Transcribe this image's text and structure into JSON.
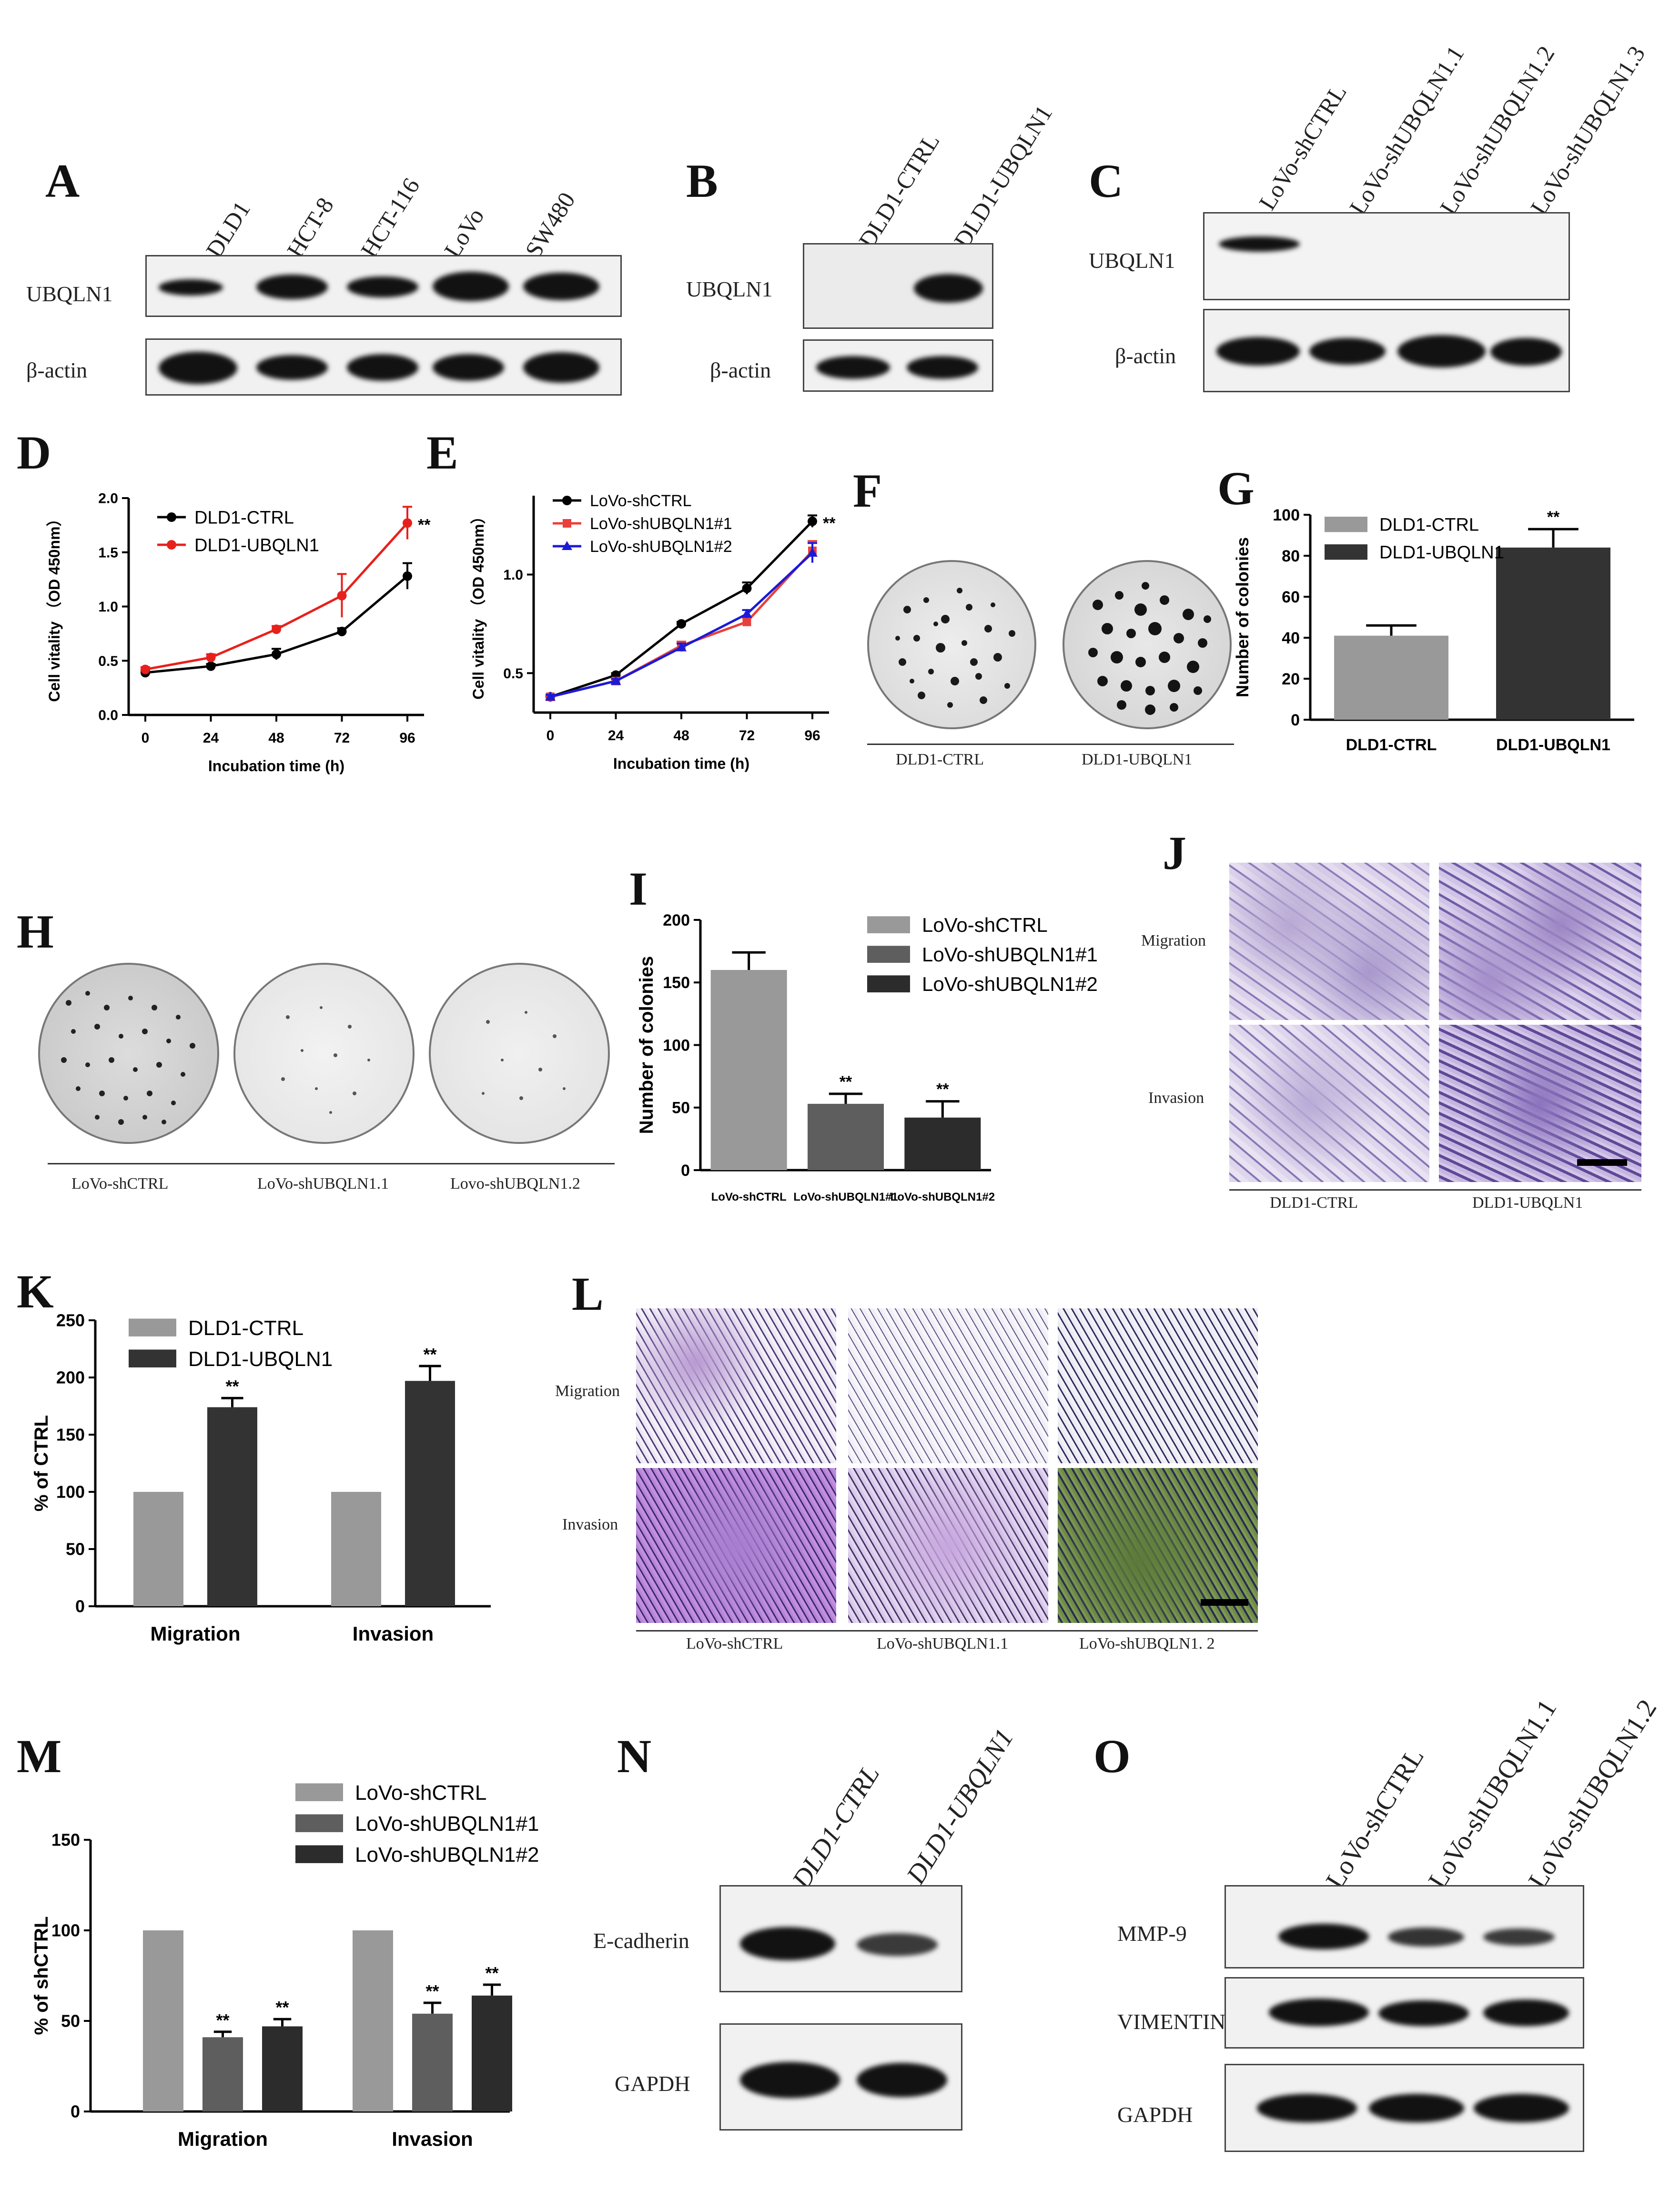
{
  "panels": {
    "A": {
      "label": "A",
      "lanes": [
        "DLD1",
        "HCT-8",
        "HCT-116",
        "LoVo",
        "SW480"
      ],
      "rows": [
        "UBQLN1",
        "β-actin"
      ]
    },
    "B": {
      "label": "B",
      "lanes": [
        "DLD1-CTRL",
        "DLD1-UBQLN1"
      ],
      "rows": [
        "UBQLN1",
        "β-actin"
      ]
    },
    "C": {
      "label": "C",
      "lanes": [
        "LoVo-shCTRL",
        "LoVo-shUBQLN1.1",
        "LoVo-shUBQLN1.2",
        "LoVo-shUBQLN1.3"
      ],
      "rows": [
        "UBQLN1",
        "β-actin"
      ]
    },
    "F": {
      "label": "F",
      "captions": [
        "DLD1-CTRL",
        "DLD1-UBQLN1"
      ]
    },
    "H": {
      "label": "H",
      "captions": [
        "LoVo-shCTRL",
        "LoVo-shUBQLN1.1",
        "Lovo-shUBQLN1.2"
      ]
    },
    "J": {
      "label": "J",
      "rows": [
        "Migration",
        "Invasion"
      ],
      "captions": [
        "DLD1-CTRL",
        "DLD1-UBQLN1"
      ]
    },
    "L": {
      "label": "L",
      "rows": [
        "Migration",
        "Invasion"
      ],
      "captions": [
        "LoVo-shCTRL",
        "LoVo-shUBQLN1.1",
        "LoVo-shUBQLN1. 2"
      ]
    },
    "N": {
      "label": "N",
      "lanes": [
        "DLD1-CTRL",
        "DLD1-UBQLN1"
      ],
      "rows": [
        "E-cadherin",
        "GAPDH"
      ]
    },
    "O": {
      "label": "O",
      "lanes": [
        "LoVo-shCTRL",
        "LoVo-shUBQLN1.1",
        "LoVo-shUBQLN1.2"
      ],
      "rows": [
        "MMP-9",
        "VIMENTIN",
        "GAPDH"
      ]
    }
  },
  "chart_data": [
    {
      "id": "D",
      "type": "line",
      "xlabel": "Incubation time (h)",
      "ylabel": "Cell vitality （OD 450nm）",
      "x": [
        0,
        24,
        48,
        72,
        96
      ],
      "ylim": [
        0,
        2.0
      ],
      "yticks": [
        "0.0",
        "0.5",
        "1.0",
        "1.5",
        "2.0"
      ],
      "series": [
        {
          "name": "DLD1-CTRL",
          "color": "#000000",
          "values": [
            0.39,
            0.45,
            0.56,
            0.77,
            1.28
          ],
          "err": [
            0.02,
            0.02,
            0.05,
            0.03,
            0.12
          ]
        },
        {
          "name": "DLD1-UBQLN1",
          "color": "#e8201c",
          "values": [
            0.42,
            0.53,
            0.79,
            1.1,
            1.77
          ],
          "err": [
            0.02,
            0.03,
            0.03,
            0.2,
            0.15
          ]
        }
      ],
      "annotations": [
        "**"
      ]
    },
    {
      "id": "E",
      "type": "line",
      "xlabel": "Incubation time (h)",
      "ylabel": "Cell vitality （OD 450nm）",
      "x": [
        0,
        24,
        48,
        72,
        96
      ],
      "ylim": [
        0.3,
        1.4
      ],
      "yticks": [
        "0.5",
        "1.0"
      ],
      "series": [
        {
          "name": "LoVo-shCTRL",
          "color": "#000000",
          "values": [
            0.38,
            0.49,
            0.75,
            0.93,
            1.27
          ],
          "err": [
            0.01,
            0.01,
            0.01,
            0.03,
            0.03
          ]
        },
        {
          "name": "LoVo-shUBQLN1#1",
          "color": "#e8403c",
          "values": [
            0.38,
            0.46,
            0.64,
            0.76,
            1.12
          ],
          "err": [
            0.01,
            0.01,
            0.02,
            0.02,
            0.05
          ]
        },
        {
          "name": "LoVo-shUBQLN1#2",
          "color": "#1a1ad8",
          "values": [
            0.38,
            0.46,
            0.63,
            0.8,
            1.11
          ],
          "err": [
            0.01,
            0.01,
            0.02,
            0.02,
            0.05
          ]
        }
      ],
      "annotations": [
        "**"
      ]
    },
    {
      "id": "G",
      "type": "bar",
      "ylabel": "Number of colonies",
      "categories": [
        "DLD1-CTRL",
        "DLD1-UBQLN1"
      ],
      "ylim": [
        0,
        100
      ],
      "yticks": [
        "0",
        "20",
        "40",
        "60",
        "80",
        "100"
      ],
      "series": [
        {
          "name": "",
          "values": [
            41,
            84
          ],
          "err": [
            5,
            9
          ]
        }
      ],
      "colors": [
        "#999999",
        "#333333"
      ],
      "legend": [
        "DLD1-CTRL",
        "DLD1-UBQLN1"
      ],
      "annotations": [
        "**"
      ]
    },
    {
      "id": "I",
      "type": "bar",
      "ylabel": "Number of colonies",
      "categories": [
        "LoVo-shCTRL",
        "LoVo-shUBQLN1#1",
        "LoVo-shUBQLN1#2"
      ],
      "ylim": [
        0,
        200
      ],
      "yticks": [
        "0",
        "50",
        "100",
        "150",
        "200"
      ],
      "series": [
        {
          "name": "",
          "values": [
            160,
            53,
            42
          ],
          "err": [
            14,
            8,
            13
          ]
        }
      ],
      "colors": [
        "#999999",
        "#5e5e5e",
        "#2c2c2c"
      ],
      "legend": [
        "LoVo-shCTRL",
        "LoVo-shUBQLN1#1",
        "LoVo-shUBQLN1#2"
      ],
      "annotations": [
        "**",
        "**"
      ]
    },
    {
      "id": "K",
      "type": "bar",
      "ylabel": "% of CTRL",
      "categories": [
        "Migration",
        "Invasion"
      ],
      "ylim": [
        0,
        250
      ],
      "yticks": [
        "0",
        "50",
        "100",
        "150",
        "200",
        "250"
      ],
      "series": [
        {
          "name": "DLD1-CTRL",
          "color": "#999999",
          "values": [
            100,
            100
          ],
          "err": [
            0,
            0
          ]
        },
        {
          "name": "DLD1-UBQLN1",
          "color": "#333333",
          "values": [
            174,
            197
          ],
          "err": [
            8,
            13
          ]
        }
      ],
      "annotations": [
        "**",
        "**"
      ]
    },
    {
      "id": "M",
      "type": "bar",
      "ylabel": "% of shCTRL",
      "categories": [
        "Migration",
        "Invasion"
      ],
      "ylim": [
        0,
        150
      ],
      "yticks": [
        "0",
        "50",
        "100",
        "150"
      ],
      "series": [
        {
          "name": "LoVo-shCTRL",
          "color": "#999999",
          "values": [
            100,
            100
          ],
          "err": [
            0,
            0
          ]
        },
        {
          "name": "LoVo-shUBQLN1#1",
          "color": "#5e5e5e",
          "values": [
            41,
            54
          ],
          "err": [
            3,
            6
          ]
        },
        {
          "name": "LoVo-shUBQLN1#2",
          "color": "#2c2c2c",
          "values": [
            47,
            64
          ],
          "err": [
            4,
            6
          ]
        }
      ],
      "annotations": [
        "**",
        "**",
        "**",
        "**"
      ]
    }
  ]
}
